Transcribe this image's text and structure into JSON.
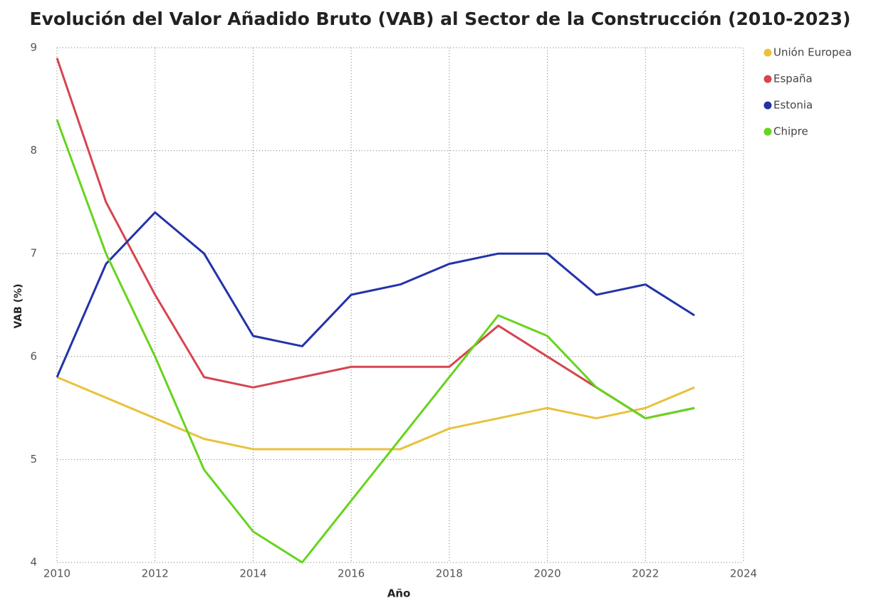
{
  "chart_data": {
    "type": "line",
    "title": "Evolución del Valor Añadido Bruto (VAB) al Sector de la Construcción (2010-2023)",
    "x_label": "Año",
    "y_label": "VAB (%)",
    "x": [
      2010,
      2011,
      2012,
      2013,
      2014,
      2015,
      2016,
      2017,
      2018,
      2019,
      2020,
      2021,
      2022,
      2023
    ],
    "series": [
      {
        "name": "Unión Europea",
        "color": "#e8c23c",
        "values": [
          5.8,
          5.6,
          5.4,
          5.2,
          5.1,
          5.1,
          5.1,
          5.1,
          5.3,
          5.4,
          5.5,
          5.4,
          5.5,
          5.7
        ]
      },
      {
        "name": "España",
        "color": "#d64550",
        "values": [
          8.9,
          7.5,
          6.6,
          5.8,
          5.7,
          5.8,
          5.9,
          5.9,
          5.9,
          6.3,
          6.0,
          5.7,
          5.4,
          5.5
        ]
      },
      {
        "name": "Estonia",
        "color": "#2233a8",
        "values": [
          5.8,
          6.9,
          7.4,
          7.0,
          6.2,
          6.1,
          6.6,
          6.7,
          6.9,
          7.0,
          7.0,
          6.6,
          6.7,
          6.4
        ]
      },
      {
        "name": "Chipre",
        "color": "#66d41e",
        "values": [
          8.3,
          7.0,
          6.0,
          4.9,
          4.3,
          4.0,
          4.6,
          5.2,
          5.8,
          6.4,
          6.2,
          5.7,
          5.4,
          5.5
        ]
      }
    ],
    "xlim": [
      2010,
      2024
    ],
    "xticks": [
      2010,
      2012,
      2014,
      2016,
      2018,
      2020,
      2022,
      2024
    ],
    "ylim": [
      4,
      9
    ],
    "yticks": [
      4,
      5,
      6,
      7,
      8,
      9
    ],
    "grid": true,
    "legend": "right"
  }
}
